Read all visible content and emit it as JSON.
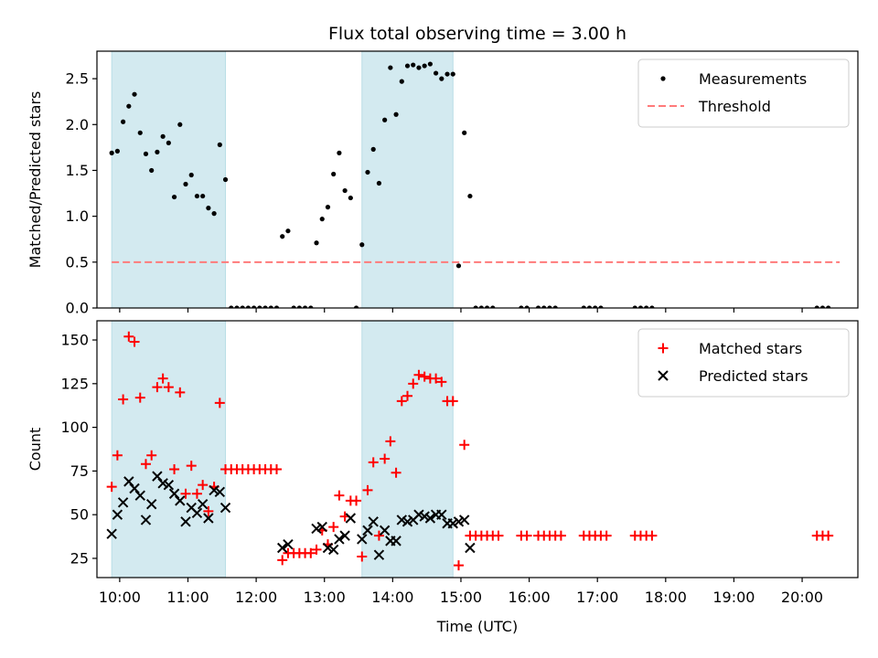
{
  "chart_data": [
    {
      "type": "scatter",
      "title": "Flux total observing time = 3.00 h",
      "ylabel": "Matched/Predicted stars",
      "xlim": [
        "09:40",
        "20:49"
      ],
      "ylim": [
        0,
        2.8
      ],
      "yticks": [
        "0.0",
        "0.5",
        "1.0",
        "1.5",
        "2.0",
        "2.5"
      ],
      "shaded_intervals": [
        [
          "09:53",
          "11:33"
        ],
        [
          "13:33",
          "14:53"
        ]
      ],
      "shade_color": "#d3eaf0",
      "legend_position": "upper right",
      "series": [
        {
          "name": "Measurements",
          "marker": "dot",
          "color": "#000000",
          "points": [
            [
              "09:53",
              1.69
            ],
            [
              "09:58",
              1.71
            ],
            [
              "10:03",
              2.03
            ],
            [
              "10:08",
              2.2
            ],
            [
              "10:13",
              2.33
            ],
            [
              "10:18",
              1.91
            ],
            [
              "10:23",
              1.68
            ],
            [
              "10:28",
              1.5
            ],
            [
              "10:33",
              1.7
            ],
            [
              "10:38",
              1.87
            ],
            [
              "10:43",
              1.8
            ],
            [
              "10:48",
              1.21
            ],
            [
              "10:53",
              2.0
            ],
            [
              "10:58",
              1.35
            ],
            [
              "11:03",
              1.45
            ],
            [
              "11:08",
              1.22
            ],
            [
              "11:13",
              1.22
            ],
            [
              "11:18",
              1.09
            ],
            [
              "11:23",
              1.03
            ],
            [
              "11:28",
              1.78
            ],
            [
              "11:33",
              1.4
            ],
            [
              "11:38",
              0
            ],
            [
              "11:43",
              0
            ],
            [
              "11:48",
              0
            ],
            [
              "11:53",
              0
            ],
            [
              "11:58",
              0
            ],
            [
              "12:03",
              0
            ],
            [
              "12:08",
              0
            ],
            [
              "12:13",
              0
            ],
            [
              "12:18",
              0
            ],
            [
              "12:23",
              0.78
            ],
            [
              "12:28",
              0.84
            ],
            [
              "12:33",
              0
            ],
            [
              "12:38",
              0
            ],
            [
              "12:43",
              0
            ],
            [
              "12:48",
              0
            ],
            [
              "12:53",
              0.71
            ],
            [
              "12:58",
              0.97
            ],
            [
              "13:03",
              1.1
            ],
            [
              "13:08",
              1.46
            ],
            [
              "13:13",
              1.69
            ],
            [
              "13:18",
              1.28
            ],
            [
              "13:23",
              1.2
            ],
            [
              "13:28",
              0
            ],
            [
              "13:33",
              0.69
            ],
            [
              "13:38",
              1.48
            ],
            [
              "13:43",
              1.73
            ],
            [
              "13:48",
              1.36
            ],
            [
              "13:53",
              2.05
            ],
            [
              "13:58",
              2.62
            ],
            [
              "14:03",
              2.11
            ],
            [
              "14:08",
              2.47
            ],
            [
              "14:13",
              2.64
            ],
            [
              "14:18",
              2.65
            ],
            [
              "14:23",
              2.62
            ],
            [
              "14:28",
              2.64
            ],
            [
              "14:33",
              2.66
            ],
            [
              "14:38",
              2.56
            ],
            [
              "14:43",
              2.5
            ],
            [
              "14:48",
              2.55
            ],
            [
              "14:53",
              2.55
            ],
            [
              "14:58",
              0.46
            ],
            [
              "15:03",
              1.91
            ],
            [
              "15:08",
              1.22
            ],
            [
              "15:13",
              0
            ],
            [
              "15:18",
              0
            ],
            [
              "15:23",
              0
            ],
            [
              "15:28",
              0
            ],
            [
              "15:53",
              0
            ],
            [
              "15:58",
              0
            ],
            [
              "16:08",
              0
            ],
            [
              "16:13",
              0
            ],
            [
              "16:18",
              0
            ],
            [
              "16:23",
              0
            ],
            [
              "16:48",
              0
            ],
            [
              "16:53",
              0
            ],
            [
              "16:58",
              0
            ],
            [
              "17:03",
              0
            ],
            [
              "17:33",
              0
            ],
            [
              "17:38",
              0
            ],
            [
              "17:43",
              0
            ],
            [
              "17:48",
              0
            ],
            [
              "20:13",
              0
            ],
            [
              "20:18",
              0
            ],
            [
              "20:23",
              0
            ]
          ]
        },
        {
          "name": "Threshold",
          "type": "line",
          "style": "dashed",
          "color": "#ff7a7a",
          "points": [
            [
              "09:53",
              0.5
            ],
            [
              "20:33",
              0.5
            ]
          ]
        }
      ]
    },
    {
      "type": "scatter",
      "xlabel": "Time (UTC)",
      "ylabel": "Count",
      "xlim": [
        "09:40",
        "20:49"
      ],
      "ylim": [
        14,
        161
      ],
      "yticks": [
        "25",
        "50",
        "75",
        "100",
        "125",
        "150"
      ],
      "xticks": [
        "10:00",
        "11:00",
        "12:00",
        "13:00",
        "14:00",
        "15:00",
        "16:00",
        "17:00",
        "18:00",
        "19:00",
        "20:00"
      ],
      "shaded_intervals": [
        [
          "09:53",
          "11:33"
        ],
        [
          "13:33",
          "14:53"
        ]
      ],
      "shade_color": "#d3eaf0",
      "legend_position": "upper right",
      "series": [
        {
          "name": "Matched stars",
          "marker": "plus",
          "color": "#ff0000",
          "points": [
            [
              "09:53",
              66
            ],
            [
              "09:58",
              84
            ],
            [
              "10:03",
              116
            ],
            [
              "10:08",
              152
            ],
            [
              "10:13",
              149
            ],
            [
              "10:18",
              117
            ],
            [
              "10:23",
              79
            ],
            [
              "10:28",
              84
            ],
            [
              "10:33",
              123
            ],
            [
              "10:38",
              128
            ],
            [
              "10:43",
              123
            ],
            [
              "10:48",
              76
            ],
            [
              "10:53",
              120
            ],
            [
              "10:58",
              62
            ],
            [
              "11:03",
              78
            ],
            [
              "11:08",
              62
            ],
            [
              "11:13",
              67
            ],
            [
              "11:18",
              52
            ],
            [
              "11:23",
              66
            ],
            [
              "11:28",
              114
            ],
            [
              "11:33",
              76
            ],
            [
              "11:38",
              76
            ],
            [
              "11:43",
              76
            ],
            [
              "11:48",
              76
            ],
            [
              "11:53",
              76
            ],
            [
              "11:58",
              76
            ],
            [
              "12:03",
              76
            ],
            [
              "12:08",
              76
            ],
            [
              "12:13",
              76
            ],
            [
              "12:18",
              76
            ],
            [
              "12:23",
              24
            ],
            [
              "12:28",
              28
            ],
            [
              "12:33",
              28
            ],
            [
              "12:38",
              28
            ],
            [
              "12:43",
              28
            ],
            [
              "12:48",
              28
            ],
            [
              "12:53",
              30
            ],
            [
              "12:58",
              41
            ],
            [
              "13:03",
              33
            ],
            [
              "13:08",
              43
            ],
            [
              "13:13",
              61
            ],
            [
              "13:18",
              49
            ],
            [
              "13:23",
              58
            ],
            [
              "13:28",
              58
            ],
            [
              "13:33",
              26
            ],
            [
              "13:38",
              64
            ],
            [
              "13:43",
              80
            ],
            [
              "13:48",
              38
            ],
            [
              "13:53",
              82
            ],
            [
              "13:58",
              92
            ],
            [
              "14:03",
              74
            ],
            [
              "14:08",
              115
            ],
            [
              "14:13",
              118
            ],
            [
              "14:18",
              125
            ],
            [
              "14:23",
              130
            ],
            [
              "14:28",
              129
            ],
            [
              "14:33",
              128
            ],
            [
              "14:38",
              128
            ],
            [
              "14:43",
              126
            ],
            [
              "14:48",
              115
            ],
            [
              "14:53",
              115
            ],
            [
              "14:58",
              21
            ],
            [
              "15:03",
              90
            ],
            [
              "15:08",
              38
            ],
            [
              "15:13",
              38
            ],
            [
              "15:18",
              38
            ],
            [
              "15:23",
              38
            ],
            [
              "15:28",
              38
            ],
            [
              "15:33",
              38
            ],
            [
              "15:53",
              38
            ],
            [
              "15:58",
              38
            ],
            [
              "16:08",
              38
            ],
            [
              "16:13",
              38
            ],
            [
              "16:18",
              38
            ],
            [
              "16:23",
              38
            ],
            [
              "16:28",
              38
            ],
            [
              "16:48",
              38
            ],
            [
              "16:53",
              38
            ],
            [
              "16:58",
              38
            ],
            [
              "17:03",
              38
            ],
            [
              "17:08",
              38
            ],
            [
              "17:33",
              38
            ],
            [
              "17:38",
              38
            ],
            [
              "17:43",
              38
            ],
            [
              "17:48",
              38
            ],
            [
              "20:13",
              38
            ],
            [
              "20:18",
              38
            ],
            [
              "20:23",
              38
            ]
          ]
        },
        {
          "name": "Predicted stars",
          "marker": "x",
          "color": "#000000",
          "points": [
            [
              "09:53",
              39
            ],
            [
              "09:58",
              50
            ],
            [
              "10:03",
              57
            ],
            [
              "10:08",
              69
            ],
            [
              "10:13",
              65
            ],
            [
              "10:18",
              61
            ],
            [
              "10:23",
              47
            ],
            [
              "10:28",
              56
            ],
            [
              "10:33",
              72
            ],
            [
              "10:38",
              68
            ],
            [
              "10:43",
              67
            ],
            [
              "10:48",
              62
            ],
            [
              "10:53",
              58
            ],
            [
              "10:58",
              46
            ],
            [
              "11:03",
              54
            ],
            [
              "11:08",
              51
            ],
            [
              "11:13",
              56
            ],
            [
              "11:18",
              48
            ],
            [
              "11:23",
              64
            ],
            [
              "11:28",
              63
            ],
            [
              "11:33",
              54
            ],
            [
              "12:23",
              31
            ],
            [
              "12:28",
              33
            ],
            [
              "12:53",
              42
            ],
            [
              "12:58",
              43
            ],
            [
              "13:03",
              31
            ],
            [
              "13:08",
              30
            ],
            [
              "13:13",
              36
            ],
            [
              "13:18",
              38
            ],
            [
              "13:23",
              48
            ],
            [
              "13:33",
              36
            ],
            [
              "13:38",
              41
            ],
            [
              "13:43",
              46
            ],
            [
              "13:48",
              27
            ],
            [
              "13:53",
              41
            ],
            [
              "13:58",
              35
            ],
            [
              "14:03",
              35
            ],
            [
              "14:08",
              47
            ],
            [
              "14:13",
              46
            ],
            [
              "14:18",
              47
            ],
            [
              "14:23",
              50
            ],
            [
              "14:28",
              49
            ],
            [
              "14:33",
              48
            ],
            [
              "14:38",
              50
            ],
            [
              "14:43",
              50
            ],
            [
              "14:48",
              45
            ],
            [
              "14:53",
              45
            ],
            [
              "14:58",
              46
            ],
            [
              "15:03",
              47
            ],
            [
              "15:08",
              31
            ]
          ]
        }
      ]
    }
  ]
}
